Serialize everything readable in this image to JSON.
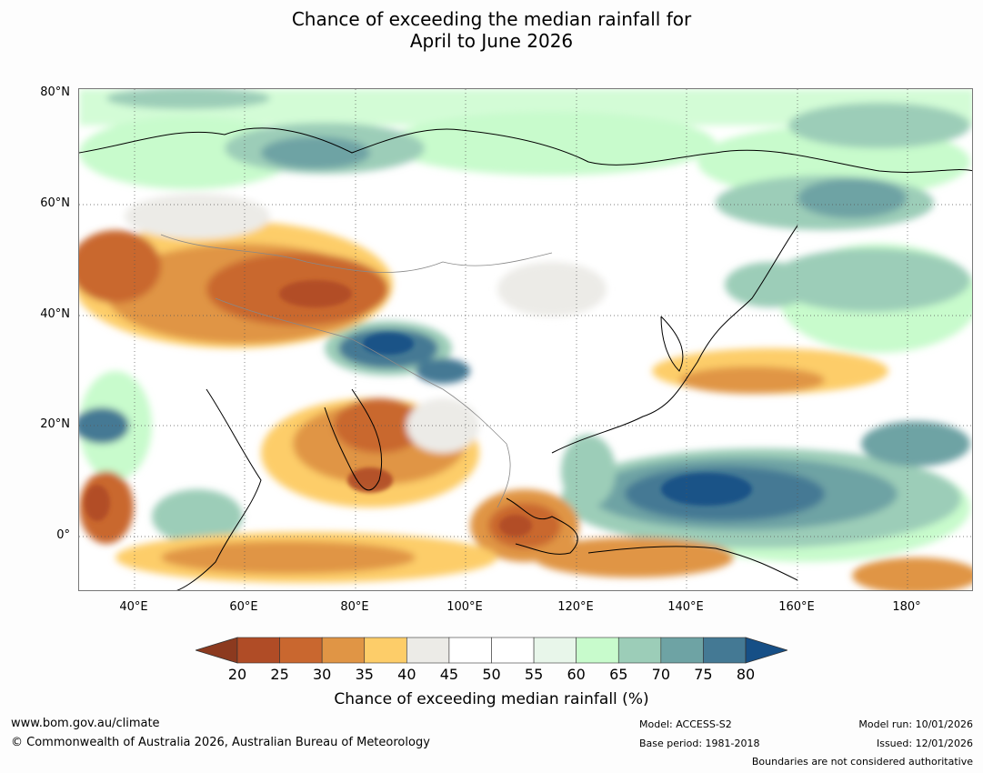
{
  "title": {
    "line1": "Chance of exceeding the median rainfall for",
    "line2": "April to June 2026"
  },
  "map": {
    "latitude_labels": [
      "80°N",
      "60°N",
      "40°N",
      "20°N",
      "0°"
    ],
    "longitude_labels": [
      "40°E",
      "60°E",
      "80°E",
      "100°E",
      "120°E",
      "140°E",
      "160°E",
      "180°"
    ],
    "extent": {
      "lon_min": 30,
      "lon_max": 192,
      "lat_min": -10,
      "lat_max": 80
    }
  },
  "colorbar": {
    "label": "Chance of exceeding median rainfall (%)",
    "ticks": [
      "20",
      "25",
      "30",
      "35",
      "40",
      "45",
      "50",
      "55",
      "60",
      "65",
      "70",
      "75",
      "80"
    ],
    "under_color": "#8c3a1f",
    "over_color": "#164f86",
    "colors": [
      "#b04c26",
      "#c9672f",
      "#e09545",
      "#fdcd69",
      "#ecebe7",
      "#ffffff",
      "#ffffff",
      "#e8f6ea",
      "#c8fbcc",
      "#9ccdb8",
      "#6ea3a4",
      "#447994"
    ]
  },
  "footer": {
    "website": "www.bom.gov.au/climate",
    "copyright": "© Commonwealth of Australia 2026, Australian Bureau of Meteorology",
    "model": "Model: ACCESS-S2",
    "base_period": "Base period: 1981-2018",
    "model_run": "Model run: 10/01/2026",
    "issued": "Issued: 12/01/2026",
    "disclaimer": "Boundaries are not considered authoritative"
  }
}
